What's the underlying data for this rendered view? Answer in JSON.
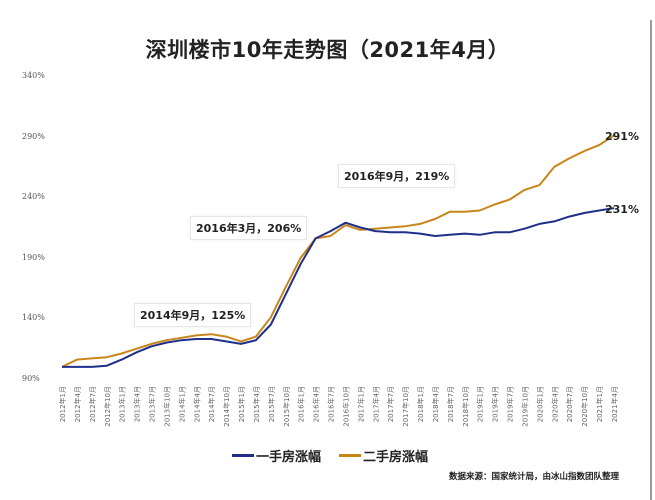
{
  "title": "深圳楼市10年走势图（2021年4月）",
  "source": "数据来源：国家统计局，由冰山指数团队整理",
  "colors": {
    "new_home": "#1f2f8a",
    "second_hand": "#c8861a"
  },
  "legend": [
    {
      "label": "一手房涨幅",
      "color": "#1f2f8a"
    },
    {
      "label": "二手房涨幅",
      "color": "#c8861a"
    }
  ],
  "callouts": [
    {
      "label": "2014年9月，125%"
    },
    {
      "label": "2016年3月，206%"
    },
    {
      "label": "2016年9月，219%"
    }
  ],
  "end_labels": {
    "second_hand": "291%",
    "new_home": "231%"
  },
  "chart_data": {
    "type": "line",
    "title": "深圳楼市10年走势图（2021年4月）",
    "xlabel": "",
    "ylabel": "",
    "ylim": [
      90,
      340
    ],
    "yticks": [
      "340%",
      "290%",
      "240%",
      "190%",
      "140%",
      "90%"
    ],
    "grid": false,
    "legend_position": "bottom",
    "categories": [
      "2012年1月",
      "2012年4月",
      "2012年7月",
      "2012年10月",
      "2013年1月",
      "2013年4月",
      "2013年7月",
      "2013年10月",
      "2014年1月",
      "2014年4月",
      "2014年7月",
      "2014年10月",
      "2015年1月",
      "2015年4月",
      "2015年7月",
      "2015年10月",
      "2016年1月",
      "2016年4月",
      "2016年7月",
      "2016年10月",
      "2017年1月",
      "2017年4月",
      "2017年7月",
      "2017年10月",
      "2018年1月",
      "2018年4月",
      "2018年7月",
      "2018年10月",
      "2019年1月",
      "2019年4月",
      "2019年7月",
      "2019年10月",
      "2020年1月",
      "2020年4月",
      "2020年7月",
      "2020年10月",
      "2021年1月",
      "2021年4月"
    ],
    "series": [
      {
        "name": "一手房涨幅",
        "values": [
          100,
          100,
          100,
          101,
          106,
          112,
          117,
          120,
          122,
          123,
          123,
          121,
          119,
          122,
          135,
          160,
          185,
          206,
          212,
          219,
          215,
          212,
          211,
          211,
          210,
          208,
          209,
          210,
          209,
          211,
          211,
          214,
          218,
          220,
          224,
          227,
          229,
          231
        ]
      },
      {
        "name": "二手房涨幅",
        "values": [
          100,
          106,
          107,
          108,
          111,
          115,
          119,
          122,
          124,
          126,
          127,
          125,
          121,
          125,
          141,
          166,
          190,
          206,
          208,
          217,
          213,
          214,
          215,
          216,
          218,
          222,
          228,
          228,
          229,
          234,
          238,
          246,
          250,
          265,
          272,
          278,
          283,
          291
        ]
      }
    ],
    "annotations": [
      {
        "text": "2014年9月，125%",
        "x": "2014年9月",
        "y": 125
      },
      {
        "text": "2016年3月，206%",
        "x": "2016年3月",
        "y": 206
      },
      {
        "text": "2016年9月，219%",
        "x": "2016年9月",
        "y": 219
      },
      {
        "text": "291%",
        "x": "2021年4月",
        "y": 291
      },
      {
        "text": "231%",
        "x": "2021年4月",
        "y": 231
      }
    ]
  }
}
